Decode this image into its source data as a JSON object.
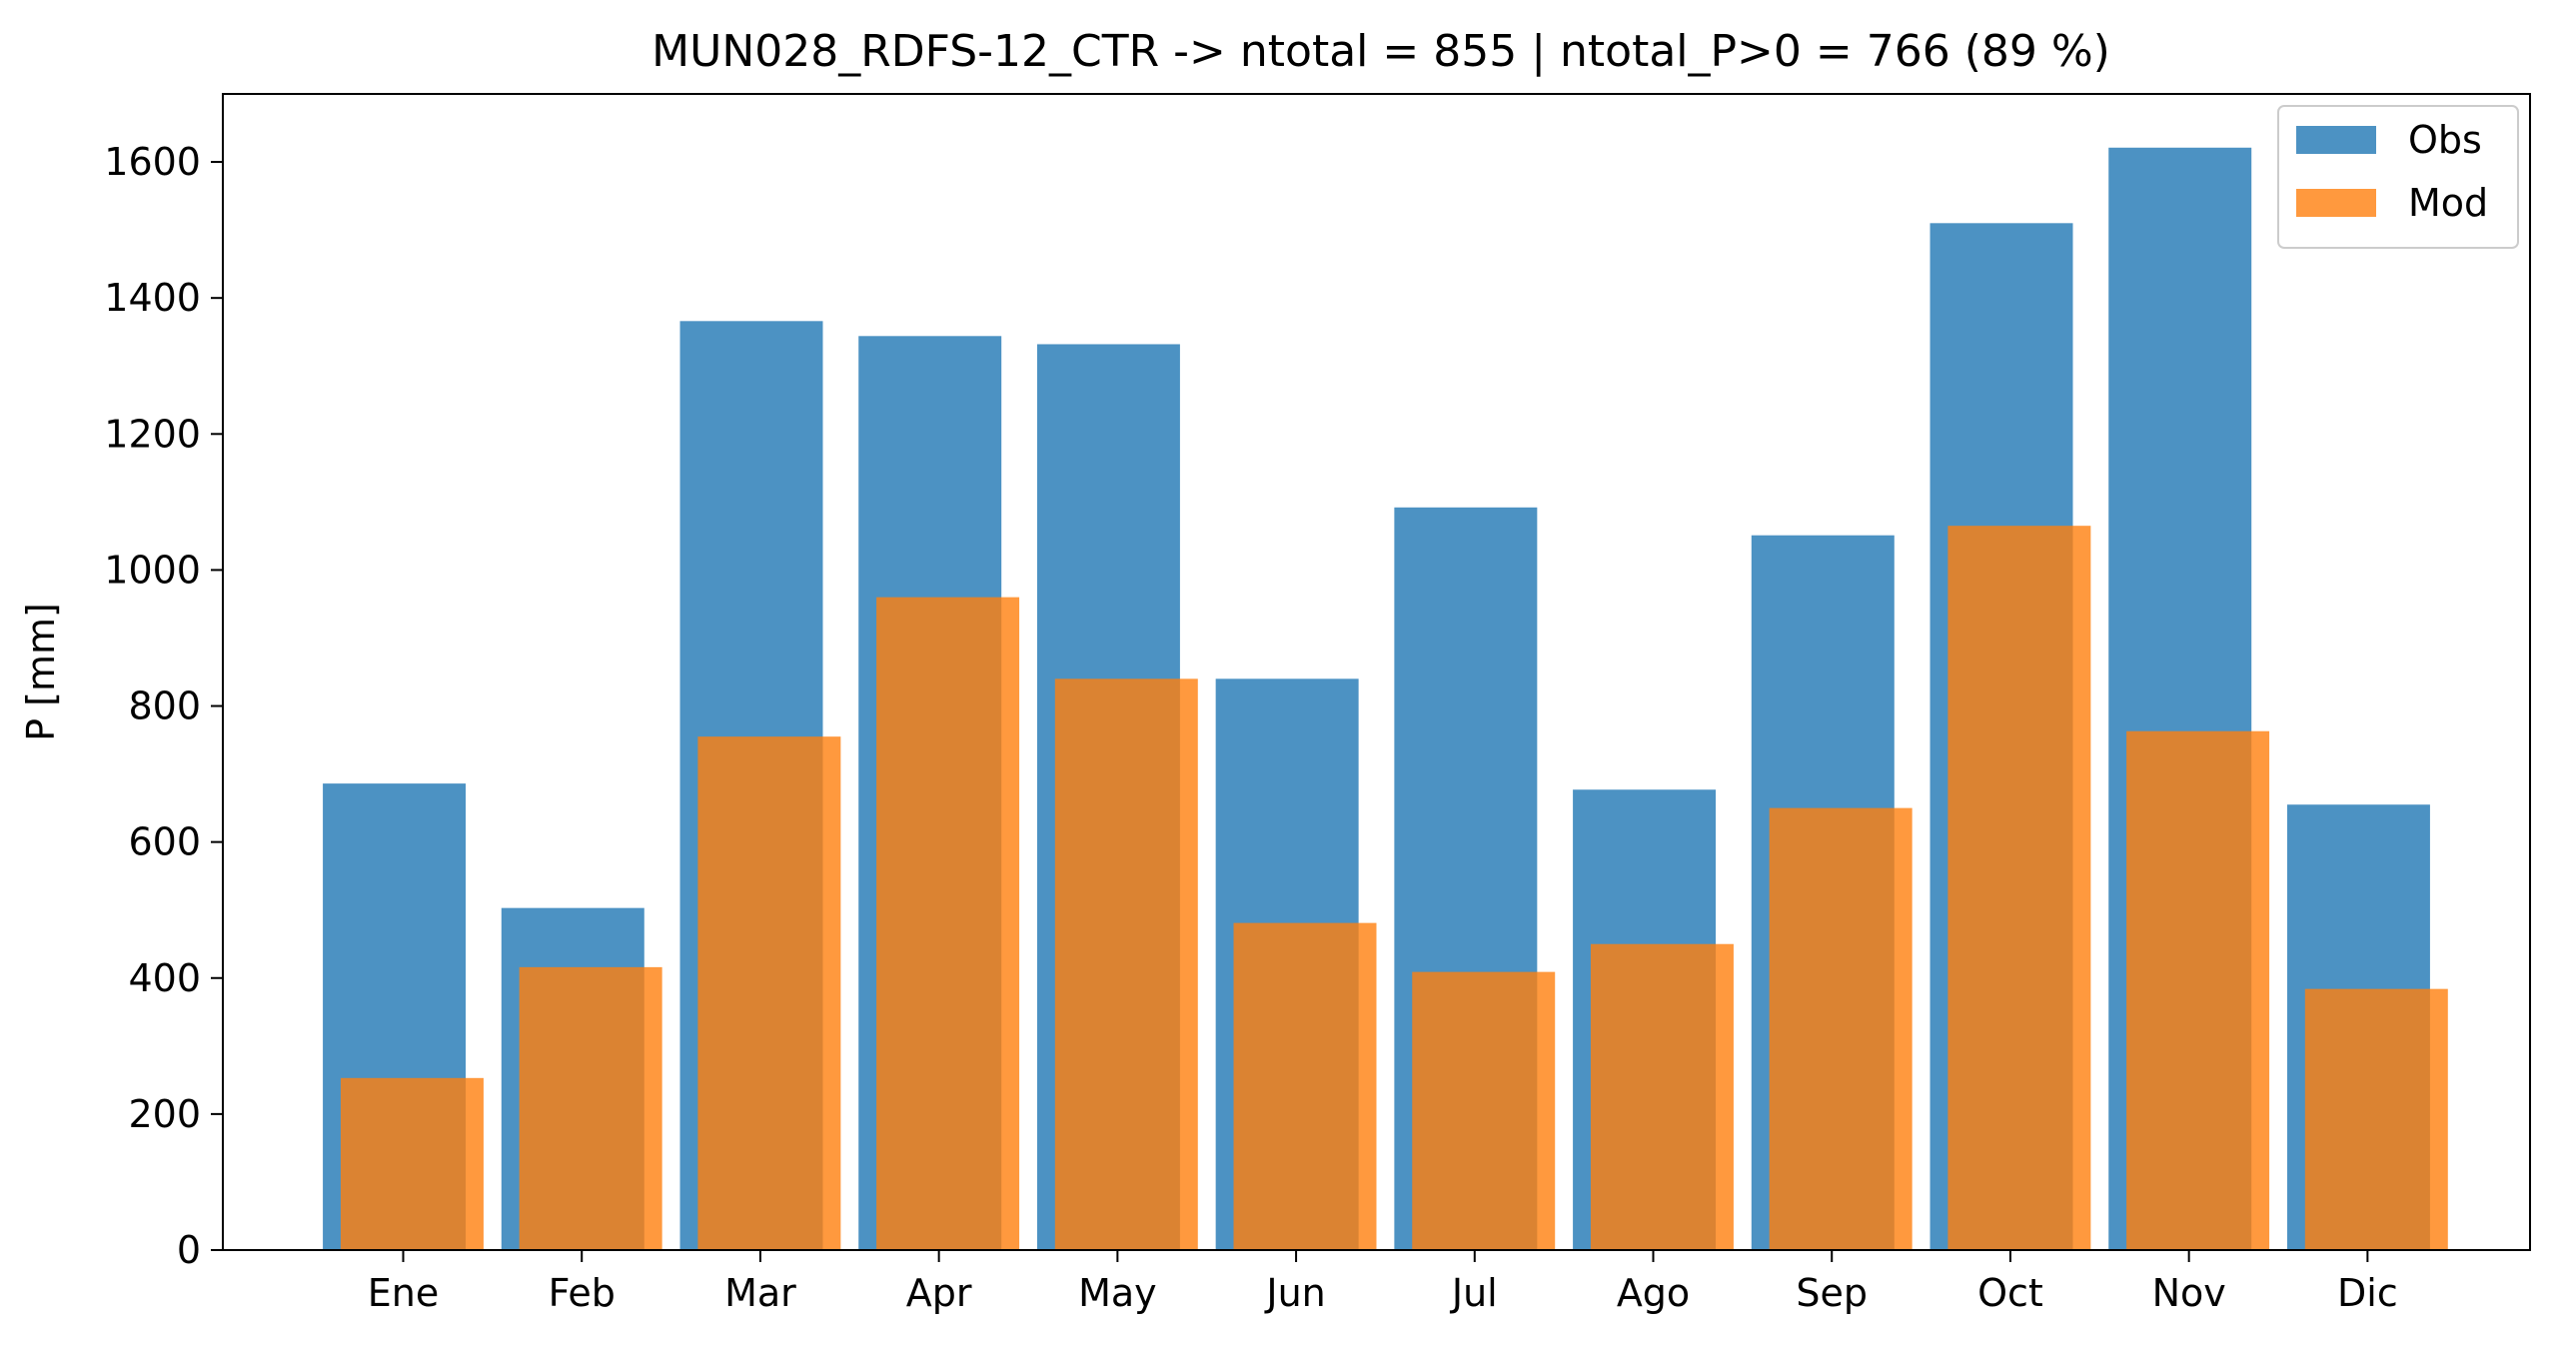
{
  "chart_data": {
    "type": "bar",
    "title": "MUN028_RDFS-12_CTR -> ntotal = 855 | ntotal_P>0 = 766 (89 %)",
    "xlabel": "",
    "ylabel": "P [mm]",
    "ylim": [
      0,
      1700
    ],
    "yticks": [
      0,
      200,
      400,
      600,
      800,
      1000,
      1200,
      1400,
      1600
    ],
    "categories": [
      "Ene",
      "Feb",
      "Mar",
      "Apr",
      "May",
      "Jun",
      "Jul",
      "Ago",
      "Sep",
      "Oct",
      "Nov",
      "Dic"
    ],
    "series": [
      {
        "name": "Obs",
        "color": "#1f77b4",
        "opacity": 0.8,
        "values": [
          686,
          503,
          1366,
          1344,
          1332,
          840,
          1092,
          677,
          1051,
          1510,
          1621,
          655
        ]
      },
      {
        "name": "Mod",
        "color": "#ff7f0e",
        "opacity": 0.8,
        "values": [
          253,
          416,
          755,
          960,
          840,
          481,
          409,
          450,
          650,
          1065,
          763,
          384
        ]
      }
    ],
    "grid": false,
    "legend": "upper right"
  }
}
